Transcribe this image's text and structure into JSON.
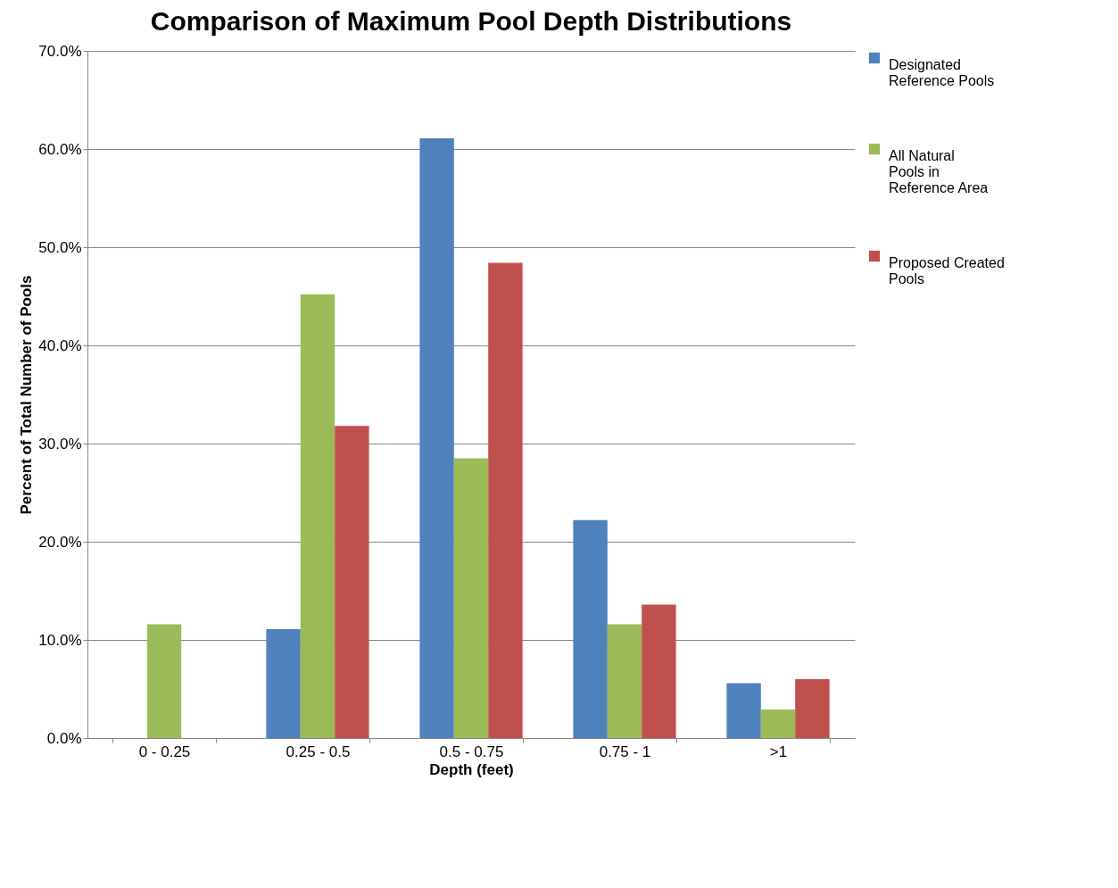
{
  "chart_data": {
    "type": "bar",
    "title": "Comparison of Maximum Pool Depth Distributions",
    "xlabel": "Depth (feet)",
    "ylabel": "Percent of Total Number of  Pools",
    "categories": [
      "0 - 0.25",
      "0.25 - 0.5",
      "0.5 - 0.75",
      "0.75 - 1",
      ">1"
    ],
    "series": [
      {
        "name": "Designated Reference Pools",
        "color": "#4f81bd",
        "values": [
          null,
          11.1,
          61.1,
          22.2,
          5.6
        ]
      },
      {
        "name": "All Natural Pools in Reference Area",
        "color": "#9bbb59",
        "values": [
          11.6,
          45.2,
          28.5,
          11.6,
          2.9
        ]
      },
      {
        "name": "Proposed Created Pools",
        "color": "#c0504d",
        "values": [
          null,
          31.8,
          48.4,
          13.6,
          6.0
        ]
      }
    ],
    "ylim": [
      0,
      70
    ],
    "yticks": [
      {
        "value": 0,
        "label": "0.0%"
      },
      {
        "value": 10,
        "label": "10.0%"
      },
      {
        "value": 20,
        "label": "20.0%"
      },
      {
        "value": 30,
        "label": "30.0%"
      },
      {
        "value": 40,
        "label": "40.0%"
      },
      {
        "value": 50,
        "label": "50.0%"
      },
      {
        "value": 60,
        "label": "60.0%"
      },
      {
        "value": 70,
        "label": "70.0%"
      }
    ],
    "grid": "y",
    "legend": "right"
  }
}
